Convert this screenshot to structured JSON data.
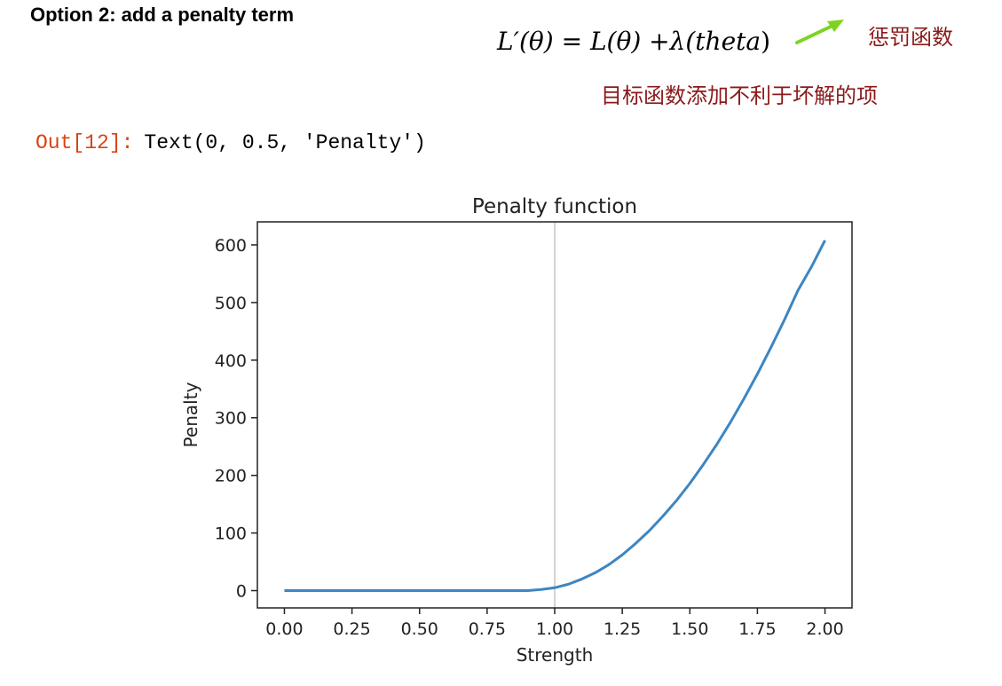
{
  "heading": "Option 2: add a penalty term",
  "formula": {
    "lhs": "L′(θ)",
    "eq": "=",
    "rhs1": "L(θ)",
    "plus": "+",
    "rhs2_prefix": "λ(",
    "rhs2_var": "theta",
    "rhs2_suffix": ")"
  },
  "annotations": {
    "penalty_label": "惩罚函数",
    "objective_label": "目标函数添加不利于坏解的项",
    "arrow_color": "#7ed321",
    "text_color": "#8b1a1a"
  },
  "output": {
    "prompt": "Out[12]:",
    "value": "Text(0, 0.5, 'Penalty')"
  },
  "chart_data": {
    "type": "line",
    "title": "Penalty function",
    "xlabel": "Strength",
    "ylabel": "Penalty",
    "xlim": [
      -0.1,
      2.1
    ],
    "ylim": [
      -30,
      640
    ],
    "xticks": [
      0.0,
      0.25,
      0.5,
      0.75,
      1.0,
      1.25,
      1.5,
      1.75,
      2.0
    ],
    "xtick_labels": [
      "0.00",
      "0.25",
      "0.50",
      "0.75",
      "1.00",
      "1.25",
      "1.50",
      "1.75",
      "2.00"
    ],
    "yticks": [
      0,
      100,
      200,
      300,
      400,
      500,
      600
    ],
    "ytick_labels": [
      "0",
      "100",
      "200",
      "300",
      "400",
      "500",
      "600"
    ],
    "vline_x": 1.0,
    "grid": false,
    "line_color": "#3c86c2",
    "vline_color": "#d3d3d3",
    "series": [
      {
        "x": [
          0.0,
          0.1,
          0.2,
          0.3,
          0.4,
          0.5,
          0.6,
          0.7,
          0.8,
          0.9,
          0.95,
          1.0,
          1.05,
          1.1,
          1.15,
          1.2,
          1.25,
          1.3,
          1.35,
          1.4,
          1.45,
          1.5,
          1.55,
          1.6,
          1.65,
          1.7,
          1.75,
          1.8,
          1.85,
          1.9,
          1.95,
          2.0
        ],
        "y": [
          0,
          0,
          0,
          0,
          0,
          0,
          0,
          0,
          0,
          0,
          2,
          5,
          11,
          20,
          31,
          45,
          62,
          82,
          104,
          129,
          156,
          186,
          219,
          254,
          292,
          333,
          376,
          422,
          470,
          521,
          562,
          608
        ]
      }
    ]
  }
}
